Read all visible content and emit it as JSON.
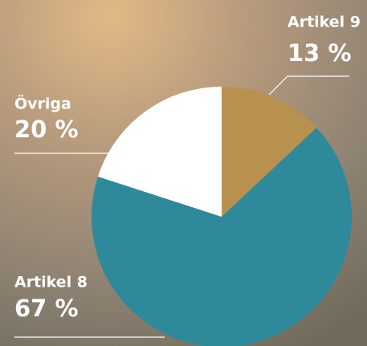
{
  "chart_data": {
    "type": "pie",
    "categories": [
      "Artikel 9",
      "Artikel 8",
      "Övriga"
    ],
    "values": [
      13,
      67,
      20
    ],
    "value_labels": [
      "13 %",
      "67 %",
      "20 %"
    ],
    "colors": [
      "#b8914f",
      "#2e899b",
      "#ffffff"
    ]
  }
}
